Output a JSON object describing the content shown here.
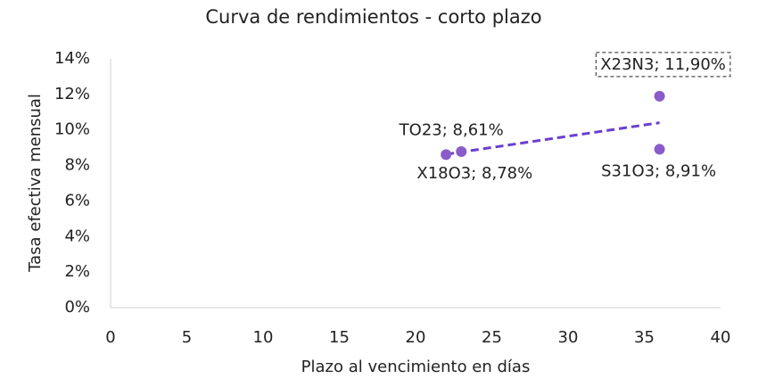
{
  "chart_data": {
    "type": "scatter",
    "title": "Curva de rendimientos - corto plazo",
    "x_label": "Plazo al vencimiento en días",
    "y_label": "Tasa efectiva mensual",
    "series": [
      {
        "color": "#8a5cc9",
        "x": [
          22,
          23,
          36,
          36
        ],
        "values": [
          8.61,
          8.78,
          11.9,
          8.91
        ],
        "value_labels": [
          "TO23; 8,61%",
          "X18O3; 8,78%",
          "X23N3; 11,90%",
          "S31O3; 8,91%"
        ]
      }
    ],
    "trendline": "linear",
    "trendline_color": "#6a3fd0",
    "xlim": [
      0,
      40
    ],
    "xticks": [
      0,
      5,
      10,
      15,
      20,
      25,
      30,
      35,
      40
    ],
    "ylim": [
      0,
      14
    ],
    "yticks": [
      {
        "value": 0,
        "label": "0%"
      },
      {
        "value": 2,
        "label": "2%"
      },
      {
        "value": 4,
        "label": "4%"
      },
      {
        "value": 6,
        "label": "6%"
      },
      {
        "value": 8,
        "label": "8%"
      },
      {
        "value": 10,
        "label": "10%"
      },
      {
        "value": 12,
        "label": "12%"
      },
      {
        "value": 14,
        "label": "14%"
      }
    ],
    "grid": false
  }
}
